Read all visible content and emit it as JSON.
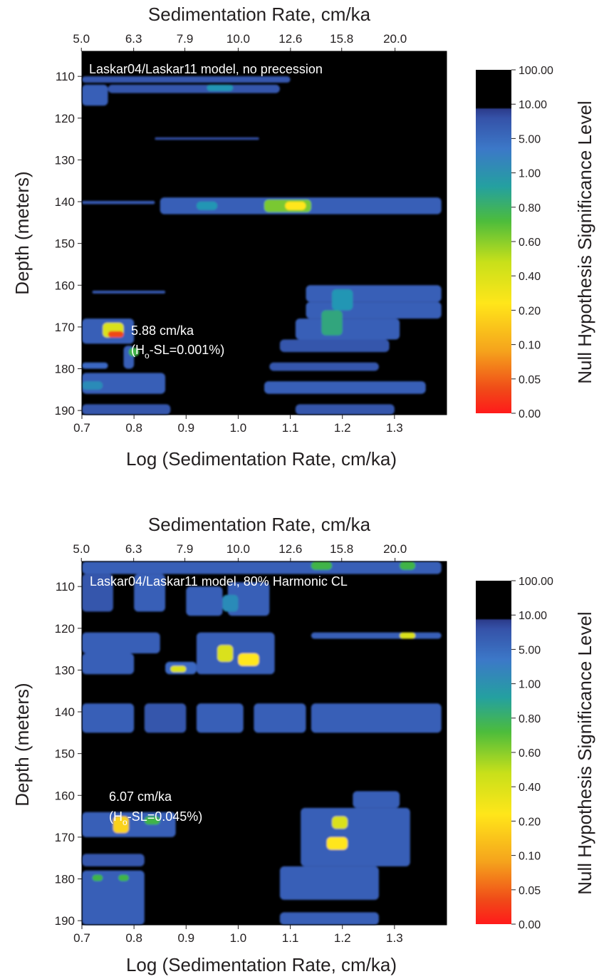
{
  "chart_data": [
    {
      "type": "heatmap",
      "title": "Laskar04/Laskar11 model, no precession",
      "xlabel": "Log (Sedimentation Rate, cm/ka)",
      "x2label": "Sedimentation Rate, cm/ka",
      "ylabel": "Depth (meters)",
      "xlim": [
        0.7,
        1.4
      ],
      "ylim": [
        104,
        191
      ],
      "y_inverted": true,
      "x_ticks": [
        "0.7",
        "0.8",
        "0.9",
        "1.0",
        "1.1",
        "1.2",
        "1.3"
      ],
      "x2_ticks": [
        "5.0",
        "6.3",
        "7.9",
        "10.0",
        "12.6",
        "15.8",
        "20.0"
      ],
      "y_ticks": [
        "110",
        "120",
        "130",
        "140",
        "150",
        "160",
        "170",
        "180",
        "190"
      ],
      "colorbar_label": "Null Hypothesis Significance Level",
      "colorbar_ticks": [
        "100.00",
        "10.00",
        "5.00",
        "1.00",
        "0.80",
        "0.60",
        "0.40",
        "0.20",
        "0.10",
        "0.05",
        "0.00"
      ],
      "annotation": {
        "line1": "5.88 cm/ka",
        "line2_pre": "(H",
        "line2_sub": "o",
        "line2_post": "-SL=0.001%)",
        "x": 0.77,
        "y": 172
      },
      "regions": [
        {
          "x0": 0.7,
          "x1": 1.1,
          "y0": 110.0,
          "y1": 111.5,
          "v": 7
        },
        {
          "x0": 0.7,
          "x1": 0.75,
          "y0": 112.0,
          "y1": 117.0,
          "v": 6
        },
        {
          "x0": 0.75,
          "x1": 1.08,
          "y0": 112.0,
          "y1": 114.0,
          "v": 7
        },
        {
          "x0": 0.94,
          "x1": 0.99,
          "y0": 112.0,
          "y1": 113.5,
          "v": 1.0
        },
        {
          "x0": 0.84,
          "x1": 1.04,
          "y0": 124.6,
          "y1": 125.2,
          "v": 8
        },
        {
          "x0": 0.7,
          "x1": 0.84,
          "y0": 139.8,
          "y1": 140.6,
          "v": 7
        },
        {
          "x0": 0.85,
          "x1": 1.39,
          "y0": 139.0,
          "y1": 143.0,
          "v": 6
        },
        {
          "x0": 0.92,
          "x1": 0.96,
          "y0": 140.0,
          "y1": 142.0,
          "v": 1.0
        },
        {
          "x0": 1.05,
          "x1": 1.14,
          "y0": 139.5,
          "y1": 142.5,
          "v": 0.7
        },
        {
          "x0": 1.09,
          "x1": 1.13,
          "y0": 140.0,
          "y1": 142.0,
          "v": 0.4
        },
        {
          "x0": 0.72,
          "x1": 0.86,
          "y0": 161.3,
          "y1": 162.0,
          "v": 7
        },
        {
          "x0": 1.13,
          "x1": 1.39,
          "y0": 160.0,
          "y1": 164.0,
          "v": 6
        },
        {
          "x0": 1.13,
          "x1": 1.39,
          "y0": 164.0,
          "y1": 168.0,
          "v": 6
        },
        {
          "x0": 1.11,
          "x1": 1.31,
          "y0": 168.0,
          "y1": 173.0,
          "v": 6
        },
        {
          "x0": 1.08,
          "x1": 1.29,
          "y0": 173.0,
          "y1": 176.0,
          "v": 7
        },
        {
          "x0": 1.18,
          "x1": 1.22,
          "y0": 161.0,
          "y1": 166.0,
          "v": 1.0
        },
        {
          "x0": 1.16,
          "x1": 1.2,
          "y0": 166.0,
          "y1": 172.0,
          "v": 0.9
        },
        {
          "x0": 0.7,
          "x1": 0.8,
          "y0": 168.0,
          "y1": 174.0,
          "v": 6
        },
        {
          "x0": 0.74,
          "x1": 0.78,
          "y0": 169.0,
          "y1": 172.5,
          "v": 0.5
        },
        {
          "x0": 0.75,
          "x1": 0.78,
          "y0": 171.0,
          "y1": 172.5,
          "v": 0.05
        },
        {
          "x0": 0.78,
          "x1": 0.8,
          "y0": 174.5,
          "y1": 180.0,
          "v": 6
        },
        {
          "x0": 0.79,
          "x1": 0.81,
          "y0": 175.0,
          "y1": 177.0,
          "v": 0.8
        },
        {
          "x0": 0.7,
          "x1": 0.75,
          "y0": 178.5,
          "y1": 180.0,
          "v": 5
        },
        {
          "x0": 0.7,
          "x1": 0.86,
          "y0": 181.0,
          "y1": 186.0,
          "v": 6
        },
        {
          "x0": 0.7,
          "x1": 0.74,
          "y0": 183.0,
          "y1": 185.0,
          "v": 2
        },
        {
          "x0": 0.7,
          "x1": 0.87,
          "y0": 188.5,
          "y1": 191.0,
          "v": 7
        },
        {
          "x0": 1.06,
          "x1": 1.27,
          "y0": 178.5,
          "y1": 180.5,
          "v": 7
        },
        {
          "x0": 1.05,
          "x1": 1.36,
          "y0": 183.0,
          "y1": 186.0,
          "v": 6
        },
        {
          "x0": 1.11,
          "x1": 1.3,
          "y0": 188.5,
          "y1": 191.0,
          "v": 7
        }
      ]
    },
    {
      "type": "heatmap",
      "title": "Laskar04/Laskar11 model, 80% Harmonic CL",
      "xlabel": "Log (Sedimentation Rate, cm/ka)",
      "x2label": "Sedimentation Rate, cm/ka",
      "ylabel": "Depth (meters)",
      "xlim": [
        0.7,
        1.4
      ],
      "ylim": [
        104,
        191
      ],
      "y_inverted": true,
      "x_ticks": [
        "0.7",
        "0.8",
        "0.9",
        "1.0",
        "1.1",
        "1.2",
        "1.3"
      ],
      "x2_ticks": [
        "5.0",
        "6.3",
        "7.9",
        "10.0",
        "12.6",
        "15.8",
        "20.0"
      ],
      "y_ticks": [
        "110",
        "120",
        "130",
        "140",
        "150",
        "160",
        "170",
        "180",
        "190"
      ],
      "colorbar_label": "Null Hypothesis Significance Level",
      "colorbar_ticks": [
        "100.00",
        "10.00",
        "5.00",
        "1.00",
        "0.80",
        "0.60",
        "0.40",
        "0.20",
        "0.10",
        "0.05",
        "0.00"
      ],
      "annotation": {
        "line1": "6.07 cm/ka",
        "line2_pre": "(H",
        "line2_sub": "o",
        "line2_post": "-SL=0.045%)",
        "x": 0.78,
        "y": 166
      },
      "regions": [
        {
          "x0": 0.7,
          "x1": 1.39,
          "y0": 104.0,
          "y1": 107.0,
          "v": 6
        },
        {
          "x0": 1.14,
          "x1": 1.18,
          "y0": 104.0,
          "y1": 106.0,
          "v": 0.8
        },
        {
          "x0": 1.31,
          "x1": 1.34,
          "y0": 104.0,
          "y1": 106.0,
          "v": 0.8
        },
        {
          "x0": 0.7,
          "x1": 0.76,
          "y0": 107.0,
          "y1": 116.0,
          "v": 7
        },
        {
          "x0": 0.8,
          "x1": 0.86,
          "y0": 107.0,
          "y1": 116.0,
          "v": 6
        },
        {
          "x0": 0.9,
          "x1": 0.97,
          "y0": 110.0,
          "y1": 117.0,
          "v": 6
        },
        {
          "x0": 0.98,
          "x1": 1.06,
          "y0": 109.0,
          "y1": 117.0,
          "v": 6
        },
        {
          "x0": 0.97,
          "x1": 1.0,
          "y0": 112.0,
          "y1": 116.0,
          "v": 2
        },
        {
          "x0": 0.7,
          "x1": 0.85,
          "y0": 121.0,
          "y1": 126.0,
          "v": 6
        },
        {
          "x0": 0.92,
          "x1": 1.07,
          "y0": 121.0,
          "y1": 131.0,
          "v": 6
        },
        {
          "x0": 0.96,
          "x1": 0.99,
          "y0": 124.0,
          "y1": 128.0,
          "v": 0.5
        },
        {
          "x0": 1.0,
          "x1": 1.04,
          "y0": 126.0,
          "y1": 129.0,
          "v": 0.4
        },
        {
          "x0": 1.14,
          "x1": 1.39,
          "y0": 121.0,
          "y1": 122.5,
          "v": 6
        },
        {
          "x0": 1.31,
          "x1": 1.34,
          "y0": 121.0,
          "y1": 122.5,
          "v": 0.5
        },
        {
          "x0": 0.7,
          "x1": 0.8,
          "y0": 126.0,
          "y1": 131.0,
          "v": 6
        },
        {
          "x0": 0.86,
          "x1": 0.92,
          "y0": 128.0,
          "y1": 131.0,
          "v": 5
        },
        {
          "x0": 0.87,
          "x1": 0.9,
          "y0": 129.0,
          "y1": 130.5,
          "v": 0.5
        },
        {
          "x0": 0.7,
          "x1": 0.8,
          "y0": 138.0,
          "y1": 145.0,
          "v": 6
        },
        {
          "x0": 0.82,
          "x1": 0.9,
          "y0": 138.0,
          "y1": 145.0,
          "v": 7
        },
        {
          "x0": 0.92,
          "x1": 1.01,
          "y0": 138.0,
          "y1": 145.0,
          "v": 6
        },
        {
          "x0": 1.03,
          "x1": 1.13,
          "y0": 138.0,
          "y1": 145.0,
          "v": 6
        },
        {
          "x0": 1.14,
          "x1": 1.39,
          "y0": 138.0,
          "y1": 145.0,
          "v": 6
        },
        {
          "x0": 0.7,
          "x1": 0.88,
          "y0": 164.0,
          "y1": 170.0,
          "v": 6
        },
        {
          "x0": 0.76,
          "x1": 0.79,
          "y0": 165.0,
          "y1": 169.0,
          "v": 0.2
        },
        {
          "x0": 0.82,
          "x1": 0.85,
          "y0": 165.0,
          "y1": 167.0,
          "v": 0.8
        },
        {
          "x0": 1.22,
          "x1": 1.31,
          "y0": 159.0,
          "y1": 163.0,
          "v": 6
        },
        {
          "x0": 1.12,
          "x1": 1.33,
          "y0": 163.0,
          "y1": 177.0,
          "v": 6
        },
        {
          "x0": 1.18,
          "x1": 1.21,
          "y0": 165.0,
          "y1": 168.0,
          "v": 0.5
        },
        {
          "x0": 1.17,
          "x1": 1.21,
          "y0": 170.0,
          "y1": 173.0,
          "v": 0.4
        },
        {
          "x0": 0.7,
          "x1": 0.82,
          "y0": 174.0,
          "y1": 177.0,
          "v": 7
        },
        {
          "x0": 0.7,
          "x1": 0.82,
          "y0": 178.0,
          "y1": 191.0,
          "v": 6
        },
        {
          "x0": 0.72,
          "x1": 0.74,
          "y0": 179.0,
          "y1": 180.5,
          "v": 0.8
        },
        {
          "x0": 0.77,
          "x1": 0.79,
          "y0": 179.0,
          "y1": 180.5,
          "v": 0.8
        },
        {
          "x0": 1.08,
          "x1": 1.27,
          "y0": 177.0,
          "y1": 185.0,
          "v": 6
        },
        {
          "x0": 1.08,
          "x1": 1.27,
          "y0": 188.0,
          "y1": 191.0,
          "v": 6
        }
      ]
    }
  ]
}
